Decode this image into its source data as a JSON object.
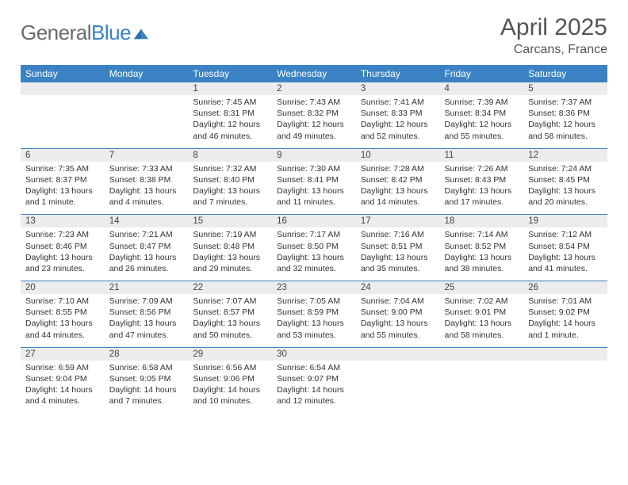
{
  "logo": {
    "part1": "General",
    "part2": "Blue"
  },
  "header": {
    "month": "April 2025",
    "location": "Carcans, France"
  },
  "colors": {
    "accent": "#3b82c4",
    "header_text": "#ffffff",
    "daynum_bg": "#ececec",
    "body_text": "#333333",
    "title_text": "#555555",
    "logo_gray": "#6b6b6b"
  },
  "weekdays": [
    "Sunday",
    "Monday",
    "Tuesday",
    "Wednesday",
    "Thursday",
    "Friday",
    "Saturday"
  ],
  "weeks": [
    [
      null,
      null,
      {
        "n": "1",
        "sr": "7:45 AM",
        "ss": "8:31 PM",
        "dl": "12 hours and 46 minutes."
      },
      {
        "n": "2",
        "sr": "7:43 AM",
        "ss": "8:32 PM",
        "dl": "12 hours and 49 minutes."
      },
      {
        "n": "3",
        "sr": "7:41 AM",
        "ss": "8:33 PM",
        "dl": "12 hours and 52 minutes."
      },
      {
        "n": "4",
        "sr": "7:39 AM",
        "ss": "8:34 PM",
        "dl": "12 hours and 55 minutes."
      },
      {
        "n": "5",
        "sr": "7:37 AM",
        "ss": "8:36 PM",
        "dl": "12 hours and 58 minutes."
      }
    ],
    [
      {
        "n": "6",
        "sr": "7:35 AM",
        "ss": "8:37 PM",
        "dl": "13 hours and 1 minute."
      },
      {
        "n": "7",
        "sr": "7:33 AM",
        "ss": "8:38 PM",
        "dl": "13 hours and 4 minutes."
      },
      {
        "n": "8",
        "sr": "7:32 AM",
        "ss": "8:40 PM",
        "dl": "13 hours and 7 minutes."
      },
      {
        "n": "9",
        "sr": "7:30 AM",
        "ss": "8:41 PM",
        "dl": "13 hours and 11 minutes."
      },
      {
        "n": "10",
        "sr": "7:28 AM",
        "ss": "8:42 PM",
        "dl": "13 hours and 14 minutes."
      },
      {
        "n": "11",
        "sr": "7:26 AM",
        "ss": "8:43 PM",
        "dl": "13 hours and 17 minutes."
      },
      {
        "n": "12",
        "sr": "7:24 AM",
        "ss": "8:45 PM",
        "dl": "13 hours and 20 minutes."
      }
    ],
    [
      {
        "n": "13",
        "sr": "7:23 AM",
        "ss": "8:46 PM",
        "dl": "13 hours and 23 minutes."
      },
      {
        "n": "14",
        "sr": "7:21 AM",
        "ss": "8:47 PM",
        "dl": "13 hours and 26 minutes."
      },
      {
        "n": "15",
        "sr": "7:19 AM",
        "ss": "8:48 PM",
        "dl": "13 hours and 29 minutes."
      },
      {
        "n": "16",
        "sr": "7:17 AM",
        "ss": "8:50 PM",
        "dl": "13 hours and 32 minutes."
      },
      {
        "n": "17",
        "sr": "7:16 AM",
        "ss": "8:51 PM",
        "dl": "13 hours and 35 minutes."
      },
      {
        "n": "18",
        "sr": "7:14 AM",
        "ss": "8:52 PM",
        "dl": "13 hours and 38 minutes."
      },
      {
        "n": "19",
        "sr": "7:12 AM",
        "ss": "8:54 PM",
        "dl": "13 hours and 41 minutes."
      }
    ],
    [
      {
        "n": "20",
        "sr": "7:10 AM",
        "ss": "8:55 PM",
        "dl": "13 hours and 44 minutes."
      },
      {
        "n": "21",
        "sr": "7:09 AM",
        "ss": "8:56 PM",
        "dl": "13 hours and 47 minutes."
      },
      {
        "n": "22",
        "sr": "7:07 AM",
        "ss": "8:57 PM",
        "dl": "13 hours and 50 minutes."
      },
      {
        "n": "23",
        "sr": "7:05 AM",
        "ss": "8:59 PM",
        "dl": "13 hours and 53 minutes."
      },
      {
        "n": "24",
        "sr": "7:04 AM",
        "ss": "9:00 PM",
        "dl": "13 hours and 55 minutes."
      },
      {
        "n": "25",
        "sr": "7:02 AM",
        "ss": "9:01 PM",
        "dl": "13 hours and 58 minutes."
      },
      {
        "n": "26",
        "sr": "7:01 AM",
        "ss": "9:02 PM",
        "dl": "14 hours and 1 minute."
      }
    ],
    [
      {
        "n": "27",
        "sr": "6:59 AM",
        "ss": "9:04 PM",
        "dl": "14 hours and 4 minutes."
      },
      {
        "n": "28",
        "sr": "6:58 AM",
        "ss": "9:05 PM",
        "dl": "14 hours and 7 minutes."
      },
      {
        "n": "29",
        "sr": "6:56 AM",
        "ss": "9:06 PM",
        "dl": "14 hours and 10 minutes."
      },
      {
        "n": "30",
        "sr": "6:54 AM",
        "ss": "9:07 PM",
        "dl": "14 hours and 12 minutes."
      },
      null,
      null,
      null
    ]
  ],
  "labels": {
    "sunrise": "Sunrise:",
    "sunset": "Sunset:",
    "daylight": "Daylight:"
  }
}
